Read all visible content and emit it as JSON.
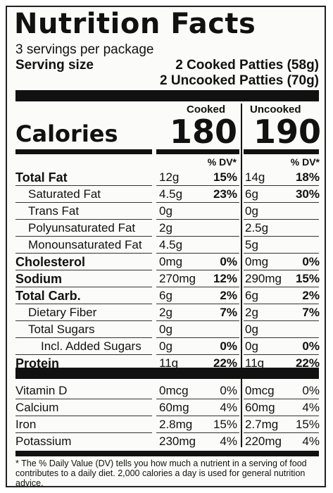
{
  "title": "Nutrition Facts",
  "servings": "3 servings per package",
  "serving_size_label": "Serving size",
  "serving_size_cooked": "2 Cooked Patties (58g)",
  "serving_size_uncooked": "2 Uncooked Patties (70g)",
  "columns": {
    "cooked": "Cooked",
    "uncooked": "Uncooked",
    "dv": "% DV*"
  },
  "calories": {
    "label": "Calories",
    "cooked": "180",
    "uncooked": "190"
  },
  "nutrients": [
    {
      "name": "Total Fat",
      "bold": true,
      "indent": 0,
      "c_amt": "12g",
      "c_dv": "15%",
      "u_amt": "14g",
      "u_dv": "18%"
    },
    {
      "name": "Saturated Fat",
      "bold": false,
      "indent": 1,
      "c_amt": "4.5g",
      "c_dv": "23%",
      "u_amt": "6g",
      "u_dv": "30%"
    },
    {
      "name": "Trans Fat",
      "bold": false,
      "indent": 1,
      "c_amt": "0g",
      "c_dv": "",
      "u_amt": "0g",
      "u_dv": ""
    },
    {
      "name": "Polyunsaturated Fat",
      "bold": false,
      "indent": 1,
      "c_amt": "2g",
      "c_dv": "",
      "u_amt": "2.5g",
      "u_dv": ""
    },
    {
      "name": "Monounsaturated Fat",
      "bold": false,
      "indent": 1,
      "c_amt": "4.5g",
      "c_dv": "",
      "u_amt": "5g",
      "u_dv": ""
    },
    {
      "name": "Cholesterol",
      "bold": true,
      "indent": 0,
      "c_amt": "0mg",
      "c_dv": "0%",
      "u_amt": "0mg",
      "u_dv": "0%"
    },
    {
      "name": "Sodium",
      "bold": true,
      "indent": 0,
      "c_amt": "270mg",
      "c_dv": "12%",
      "u_amt": "290mg",
      "u_dv": "15%"
    },
    {
      "name": "Total Carb.",
      "bold": true,
      "indent": 0,
      "c_amt": "6g",
      "c_dv": "2%",
      "u_amt": "6g",
      "u_dv": "2%"
    },
    {
      "name": "Dietary Fiber",
      "bold": false,
      "indent": 1,
      "c_amt": "2g",
      "c_dv": "7%",
      "u_amt": "2g",
      "u_dv": "7%"
    },
    {
      "name": "Total Sugars",
      "bold": false,
      "indent": 1,
      "c_amt": "0g",
      "c_dv": "",
      "u_amt": "0g",
      "u_dv": ""
    },
    {
      "name": "Incl. Added Sugars",
      "bold": false,
      "indent": 2,
      "c_amt": "0g",
      "c_dv": "0%",
      "u_amt": "0g",
      "u_dv": "0%"
    },
    {
      "name": "Protein",
      "bold": true,
      "indent": 0,
      "c_amt": "11g",
      "c_dv": "22%",
      "u_amt": "11g",
      "u_dv": "22%"
    }
  ],
  "vitamins": [
    {
      "name": "Vitamin D",
      "c_amt": "0mcg",
      "c_dv": "0%",
      "u_amt": "0mcg",
      "u_dv": "0%"
    },
    {
      "name": "Calcium",
      "c_amt": "60mg",
      "c_dv": "4%",
      "u_amt": "60mg",
      "u_dv": "4%"
    },
    {
      "name": "Iron",
      "c_amt": "2.8mg",
      "c_dv": "15%",
      "u_amt": "2.7mg",
      "u_dv": "15%"
    },
    {
      "name": "Potassium",
      "c_amt": "230mg",
      "c_dv": "4%",
      "u_amt": "220mg",
      "u_dv": "4%"
    }
  ],
  "footnote": "* The % Daily Value (DV) tells you how much a nutrient in a serving of food contributes to a daily diet. 2,000 calories a day is used for general nutrition advice."
}
